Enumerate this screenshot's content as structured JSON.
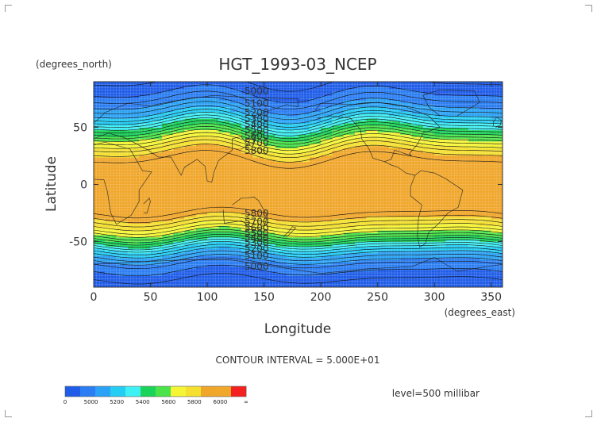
{
  "chart_data": {
    "type": "heatmap",
    "title": "HGT_1993-03_NCEP",
    "ylabel": "Latitude",
    "yunits": "(degrees_north)",
    "xlabel": "Longitude",
    "xunits": "(degrees_east)",
    "xlim": [
      0,
      360
    ],
    "ylim": [
      -90,
      90
    ],
    "xticks": [
      0,
      50,
      100,
      150,
      200,
      250,
      300,
      350
    ],
    "yticks": [
      50,
      0,
      -50
    ],
    "contour_interval": "CONTOUR INTERVAL = 5.000E+01",
    "level": "level=500 millibar",
    "contour_labels_north": [
      "5000",
      "5100",
      "5200",
      "5300",
      "5400",
      "5500",
      "5600",
      "5700",
      "5800"
    ],
    "contour_labels_south": [
      "5800",
      "5700",
      "5600",
      "5500",
      "5400",
      "5300",
      "5200",
      "5100",
      "5000"
    ],
    "color_bands": [
      {
        "min": 0,
        "max": 5000,
        "color": "#1f5ce8"
      },
      {
        "min": 5000,
        "max": 5100,
        "color": "#2a7df2"
      },
      {
        "min": 5100,
        "max": 5200,
        "color": "#2aa2f5"
      },
      {
        "min": 5200,
        "max": 5300,
        "color": "#25cdf5"
      },
      {
        "min": 5300,
        "max": 5400,
        "color": "#3ff0f5"
      },
      {
        "min": 5400,
        "max": 5500,
        "color": "#1ad45a"
      },
      {
        "min": 5500,
        "max": 5600,
        "color": "#4ae44a"
      },
      {
        "min": 5600,
        "max": 5700,
        "color": "#f5f536"
      },
      {
        "min": 5700,
        "max": 5800,
        "color": "#f5e030"
      },
      {
        "min": 5800,
        "max": 5900,
        "color": "#f0a62a"
      },
      {
        "min": 5900,
        "max": 6000,
        "color": "#f0a82a"
      },
      {
        "min": 6000,
        "max": null,
        "color": "#f52020"
      }
    ],
    "legend_labels": [
      "0",
      "5000",
      "5200",
      "5400",
      "5600",
      "5800",
      "6000",
      "∞"
    ],
    "profile": {
      "lat": [
        -90,
        -80,
        -70,
        -60,
        -55,
        -50,
        -45,
        -40,
        -35,
        -30,
        -25,
        -20,
        0,
        20,
        25,
        30,
        35,
        40,
        45,
        50,
        55,
        60,
        70,
        80,
        90
      ],
      "hgt": [
        4900,
        4970,
        5040,
        5200,
        5300,
        5420,
        5540,
        5640,
        5720,
        5790,
        5850,
        5880,
        5890,
        5870,
        5830,
        5780,
        5700,
        5620,
        5520,
        5420,
        5320,
        5220,
        5090,
        5000,
        4960
      ]
    }
  }
}
